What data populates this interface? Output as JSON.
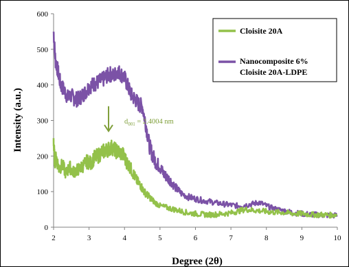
{
  "chart_data": {
    "type": "line",
    "title": "",
    "xlabel": "Degree (2θ)",
    "ylabel": "Intensity (a.u.)",
    "xlim": [
      2,
      10
    ],
    "ylim": [
      0,
      600
    ],
    "x_ticks": [
      "2",
      "3",
      "4",
      "5",
      "6",
      "7",
      "8",
      "9",
      "10"
    ],
    "y_ticks": [
      "0",
      "100",
      "200",
      "300",
      "400",
      "500",
      "600"
    ],
    "grid": false,
    "legend_position": "top-right",
    "annotation": {
      "text_main": "d",
      "text_sub": "001",
      "text_rest": " = 2.4004 nm",
      "arrow_x": 3.55,
      "arrow_from_y": 340,
      "arrow_to_y": 270,
      "color": "#7f9f3a"
    },
    "series": [
      {
        "name": "Cloisite 20A",
        "color": "#93c14a",
        "x": [
          2.0,
          2.03,
          2.08,
          2.15,
          2.25,
          2.35,
          2.45,
          2.55,
          2.65,
          2.75,
          2.85,
          2.95,
          3.05,
          3.15,
          3.25,
          3.35,
          3.45,
          3.55,
          3.65,
          3.75,
          3.85,
          3.95,
          4.05,
          4.15,
          4.25,
          4.35,
          4.45,
          4.55,
          4.65,
          4.75,
          4.85,
          5.0,
          5.2,
          5.4,
          5.6,
          5.8,
          6.0,
          6.2,
          6.4,
          6.6,
          6.8,
          7.0,
          7.2,
          7.4,
          7.6,
          7.8,
          8.0,
          8.2,
          8.4,
          8.6,
          8.8,
          9.0,
          9.2,
          9.4,
          9.6,
          9.8,
          10.0
        ],
        "y": [
          245,
          185,
          195,
          165,
          175,
          150,
          170,
          155,
          160,
          165,
          175,
          185,
          180,
          195,
          200,
          210,
          215,
          220,
          225,
          215,
          210,
          205,
          185,
          170,
          150,
          130,
          118,
          100,
          90,
          80,
          70,
          60,
          55,
          50,
          45,
          40,
          38,
          36,
          35,
          36,
          38,
          40,
          45,
          50,
          48,
          46,
          44,
          42,
          42,
          40,
          38,
          38,
          36,
          35,
          35,
          34,
          35
        ]
      },
      {
        "name": "Nanocomposite 6% Cloisite 20A-LDPE",
        "color": "#7b52a6",
        "x": [
          2.0,
          2.05,
          2.12,
          2.2,
          2.3,
          2.4,
          2.5,
          2.6,
          2.7,
          2.8,
          2.9,
          3.0,
          3.1,
          3.2,
          3.3,
          3.4,
          3.5,
          3.6,
          3.7,
          3.8,
          3.9,
          4.0,
          4.1,
          4.2,
          4.3,
          4.4,
          4.5,
          4.6,
          4.7,
          4.8,
          4.9,
          5.0,
          5.1,
          5.2,
          5.3,
          5.45,
          5.6,
          5.8,
          6.0,
          6.2,
          6.4,
          6.6,
          6.8,
          7.0,
          7.2,
          7.4,
          7.6,
          7.8,
          8.0,
          8.2,
          8.4,
          8.6,
          8.8,
          9.0,
          9.2,
          9.4,
          9.6,
          9.8,
          10.0
        ],
        "y": [
          550,
          470,
          440,
          400,
          385,
          365,
          370,
          360,
          360,
          370,
          380,
          395,
          400,
          405,
          410,
          415,
          425,
          430,
          425,
          440,
          430,
          420,
          395,
          370,
          360,
          345,
          340,
          290,
          230,
          200,
          180,
          170,
          150,
          140,
          130,
          110,
          95,
          85,
          80,
          75,
          72,
          68,
          65,
          62,
          60,
          62,
          65,
          70,
          60,
          52,
          48,
          44,
          40,
          38,
          36,
          35,
          34,
          33,
          33
        ]
      }
    ]
  }
}
